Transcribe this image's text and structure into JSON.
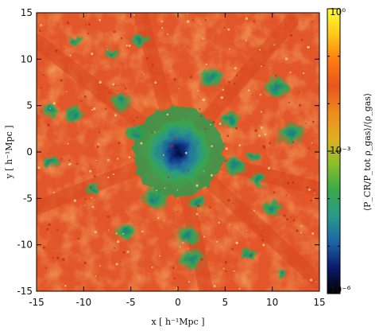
{
  "chart_data": {
    "type": "heatmap",
    "title": "",
    "xlabel": "x [ h⁻¹Mpc ]",
    "ylabel": "y [ h⁻¹Mpc ]",
    "xlim": [
      -15,
      15
    ],
    "ylim": [
      -15,
      15
    ],
    "x_ticks": [
      "-15",
      "-10",
      "-5",
      "0",
      "5",
      "10",
      "15"
    ],
    "y_ticks": [
      "-15",
      "-10",
      "-5",
      "0",
      "5",
      "10",
      "15"
    ],
    "x_tick_values": [
      -15,
      -10,
      -5,
      0,
      5,
      10,
      15
    ],
    "y_tick_values": [
      -15,
      -10,
      -5,
      0,
      5,
      10,
      15
    ],
    "colorbar": {
      "label": "⟨P_CR/P_tot ρ_gas⟩/⟨ρ_gas⟩",
      "scale": "log",
      "range": [
        1e-06,
        1.0
      ],
      "tick_labels": [
        "10⁰",
        "10⁻³",
        "10⁻⁶"
      ],
      "tick_values": [
        1,
        0.001,
        1e-06
      ]
    },
    "colors": {
      "background_field": "#e2562a",
      "filament": "#d9461f",
      "green": "#2f9a4f",
      "teal": "#2b8c8c",
      "blue_core": "#1b4fa6",
      "core_dark": "#0a1a5e",
      "colormap": [
        "#000000",
        "#0b1a6b",
        "#1b66a8",
        "#2a9a8a",
        "#3aa84a",
        "#8abf2a",
        "#e0b020",
        "#ee8a1c",
        "#e8561e",
        "#ff7a10",
        "#ffc818",
        "#ffff30"
      ]
    },
    "features": {
      "central_halo": {
        "x": 0,
        "y": 0,
        "radius": 3.2
      },
      "green_blobs": [
        {
          "x": -11,
          "y": 12
        },
        {
          "x": -7,
          "y": 10.5
        },
        {
          "x": -4,
          "y": 12
        },
        {
          "x": -13.5,
          "y": 4.5
        },
        {
          "x": -11,
          "y": 4
        },
        {
          "x": -6,
          "y": 5.5
        },
        {
          "x": 3.5,
          "y": 8
        },
        {
          "x": 10.5,
          "y": 7
        },
        {
          "x": 12,
          "y": 2
        },
        {
          "x": 8,
          "y": -0.5
        },
        {
          "x": -9,
          "y": -4
        },
        {
          "x": -13.5,
          "y": -1
        },
        {
          "x": 8.5,
          "y": -3
        },
        {
          "x": 10,
          "y": -6
        },
        {
          "x": -5.5,
          "y": -8.5
        },
        {
          "x": 1,
          "y": -9
        },
        {
          "x": 1.5,
          "y": -11.5
        },
        {
          "x": -2.5,
          "y": -5
        },
        {
          "x": 11,
          "y": -13
        },
        {
          "x": 7.5,
          "y": -11
        },
        {
          "x": 2,
          "y": -5.5
        },
        {
          "x": -4.5,
          "y": 2
        },
        {
          "x": 5.5,
          "y": 3.5
        },
        {
          "x": 6,
          "y": -1.5
        }
      ],
      "filaments": [
        {
          "from": [
            0,
            0
          ],
          "to": [
            -15,
            12
          ]
        },
        {
          "from": [
            0,
            0
          ],
          "to": [
            15,
            -4
          ]
        },
        {
          "from": [
            0,
            0
          ],
          "to": [
            3,
            -15
          ]
        },
        {
          "from": [
            0,
            0
          ],
          "to": [
            -15,
            -6
          ]
        },
        {
          "from": [
            0,
            0
          ],
          "to": [
            12,
            14
          ]
        },
        {
          "from": [
            0,
            0
          ],
          "to": [
            -4,
            15
          ]
        },
        {
          "from": [
            0,
            0
          ],
          "to": [
            15,
            -14
          ]
        }
      ]
    }
  }
}
